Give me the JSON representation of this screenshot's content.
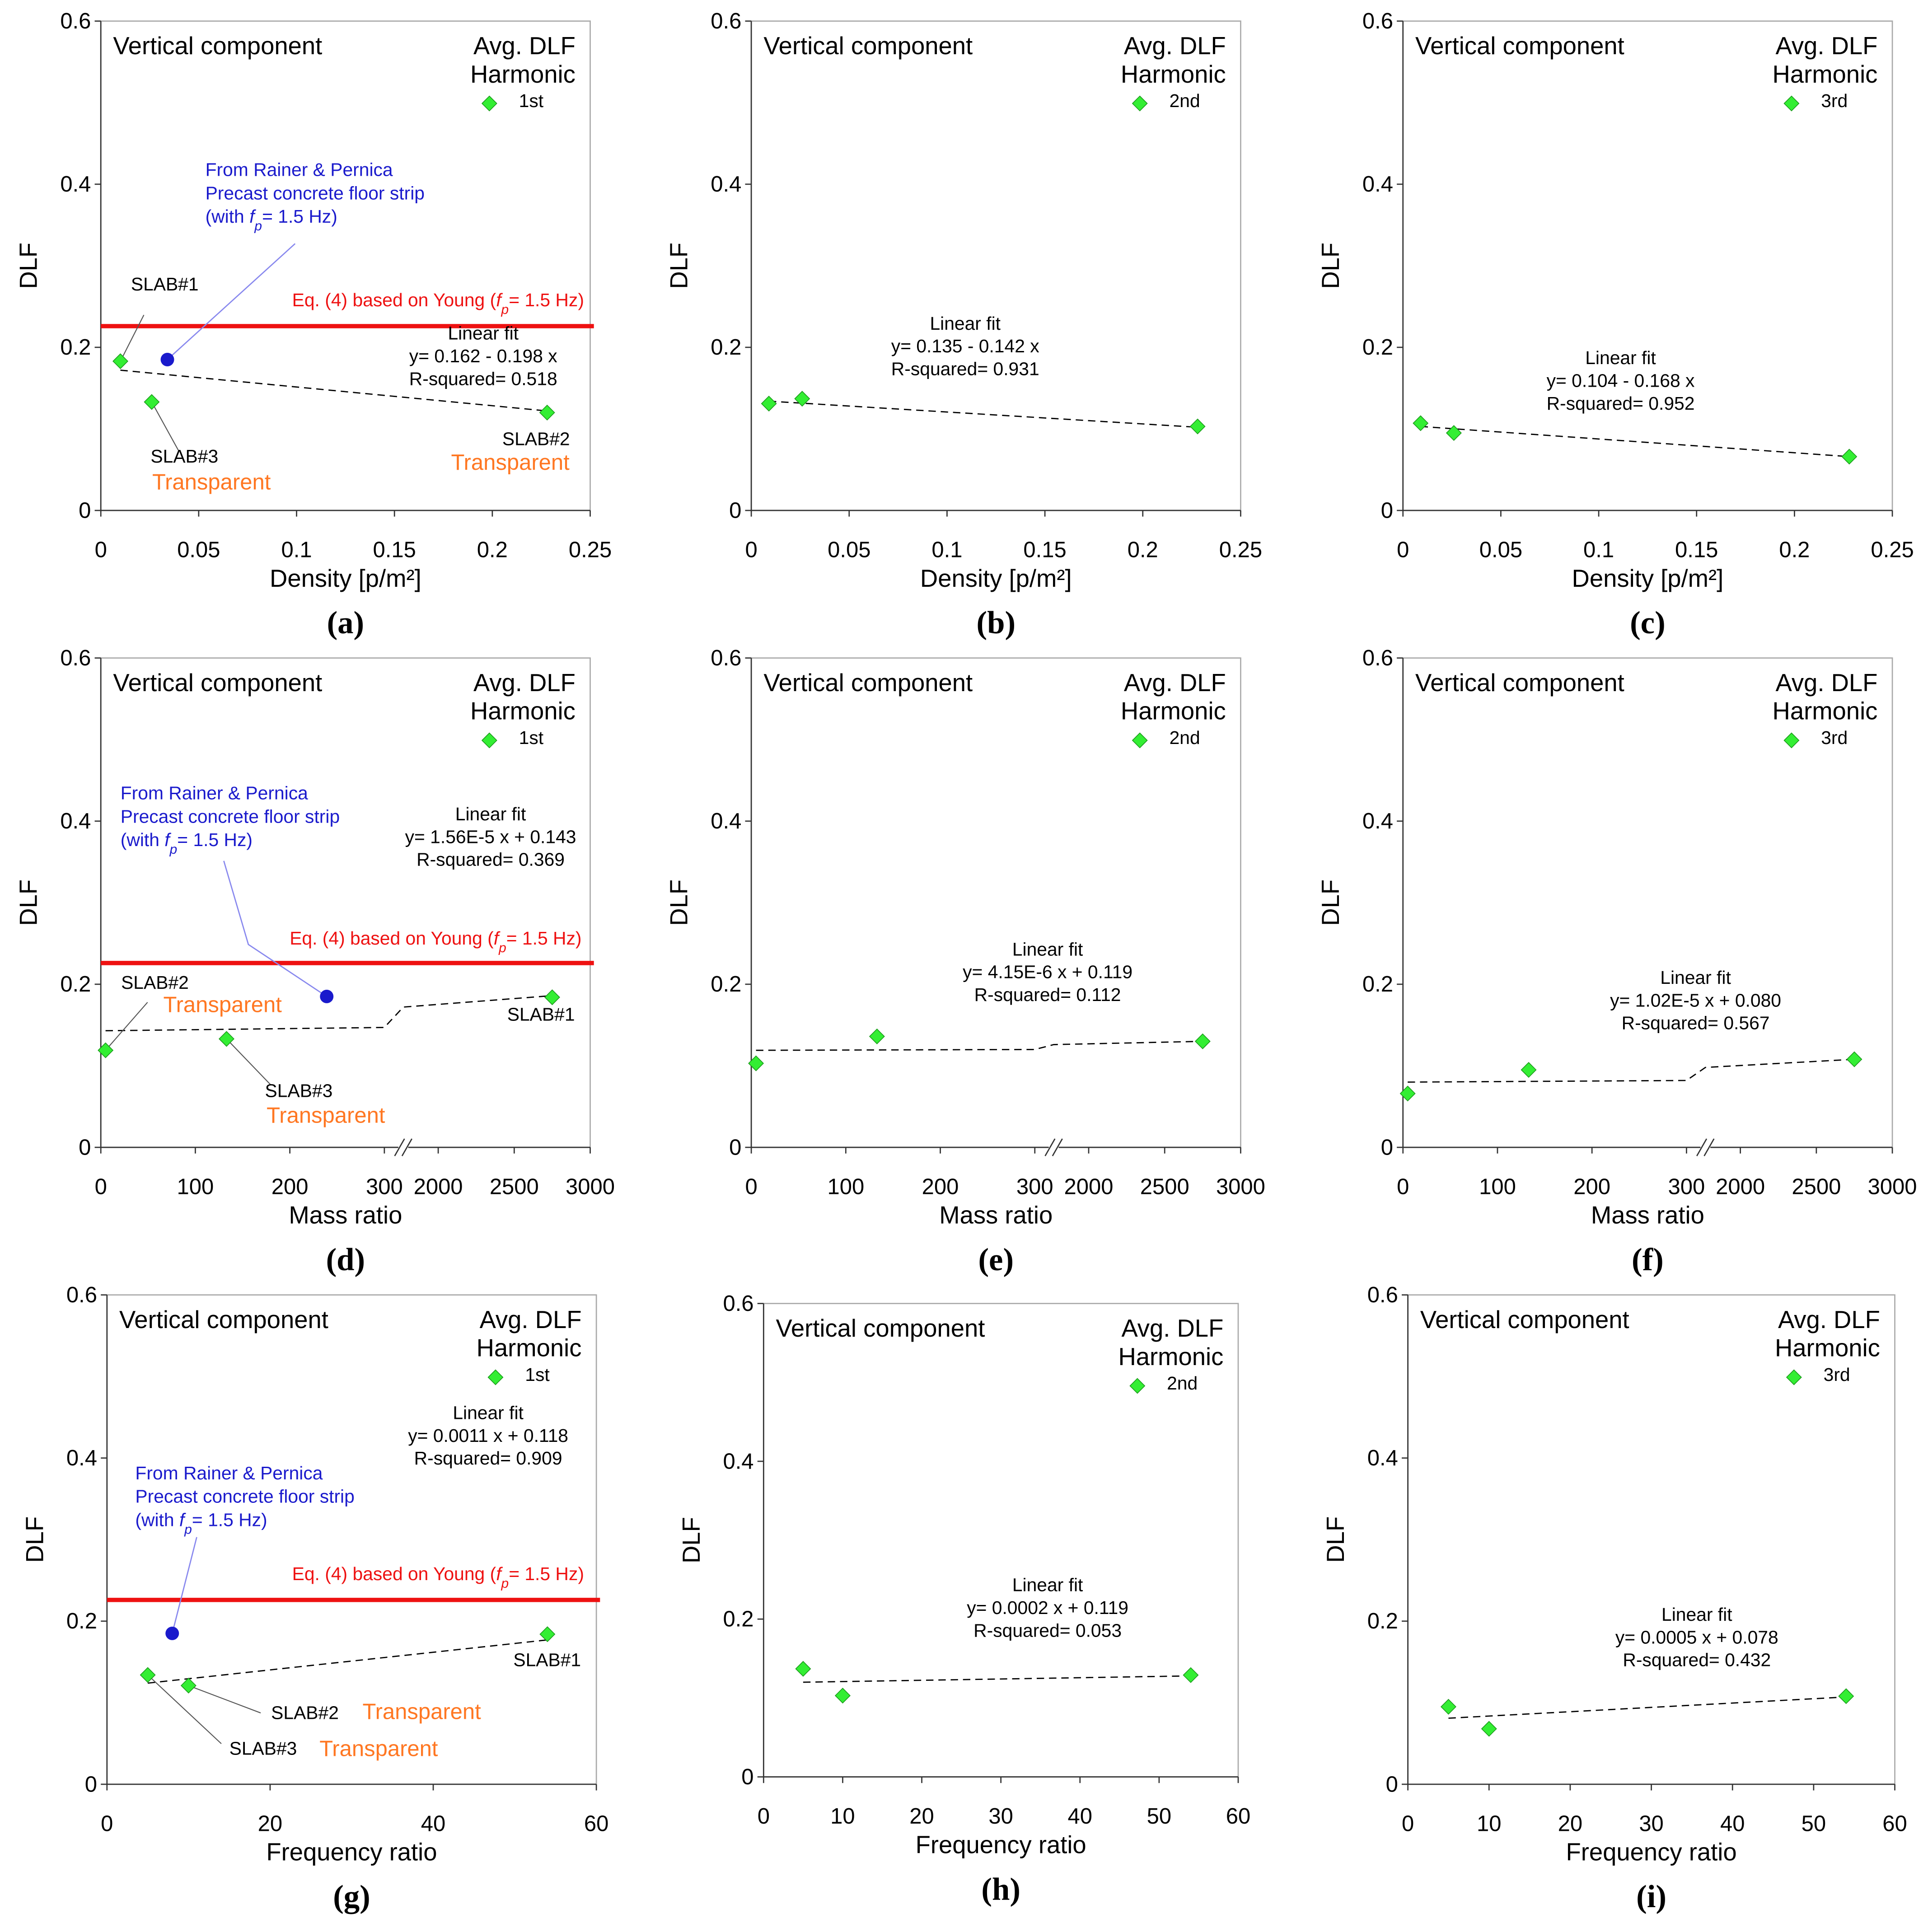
{
  "chart_data": [
    {
      "type": "scatter",
      "panel_label": "(a)",
      "title": "Vertical component",
      "legend_title": [
        "Avg. DLF",
        "Harmonic"
      ],
      "xlabel": "Density  [p/m²]",
      "ylabel": "DLF",
      "xlim": [
        0,
        0.25
      ],
      "xticks": [
        0,
        0.05,
        0.1,
        0.15,
        0.2,
        0.25
      ],
      "ylim": [
        0,
        0.6
      ],
      "yticks": [
        0,
        0.2,
        0.4,
        0.6
      ],
      "series": [
        {
          "name": "1st",
          "color": "#33ee33",
          "x": [
            0.01,
            0.026,
            0.228
          ],
          "values": [
            0.183,
            0.133,
            0.12
          ],
          "point_labels": [
            "SLAB#1",
            "SLAB#3",
            "SLAB#2"
          ],
          "point_notes": [
            null,
            "Transparent",
            "Transparent"
          ]
        }
      ],
      "fit": {
        "label": [
          "Linear fit",
          "y= 0.162 - 0.198 x",
          "R-squared= 0.518"
        ],
        "x": [
          0.01,
          0.228
        ],
        "values": [
          0.172,
          0.122
        ]
      },
      "reference_line": {
        "label": [
          "Eq. (4) based on Young (",
          "f",
          "p",
          "= 1.5 Hz)"
        ],
        "value": 0.226,
        "color": "#ee1111"
      },
      "reference_point": {
        "label": [
          "From Rainer & Pernica",
          "Precast concrete floor strip"
        ],
        "label_last": [
          "(with ",
          "f",
          "p",
          "= 1.5 Hz)"
        ],
        "x": 0.034,
        "value": 0.185,
        "color": "#1a1acc"
      }
    },
    {
      "type": "scatter",
      "panel_label": "(b)",
      "title": "Vertical component",
      "legend_title": [
        "Avg. DLF",
        "Harmonic"
      ],
      "xlabel": "Density  [p/m²]",
      "ylabel": "DLF",
      "xlim": [
        0,
        0.25
      ],
      "xticks": [
        0,
        0.05,
        0.1,
        0.15,
        0.2,
        0.25
      ],
      "ylim": [
        0,
        0.6
      ],
      "yticks": [
        0,
        0.2,
        0.4,
        0.6
      ],
      "series": [
        {
          "name": "2nd",
          "color": "#33ee33",
          "x": [
            0.009,
            0.026,
            0.228
          ],
          "values": [
            0.131,
            0.137,
            0.103
          ]
        }
      ],
      "fit": {
        "label": [
          "Linear fit",
          "y= 0.135 - 0.142 x",
          "R-squared= 0.931"
        ],
        "x": [
          0.009,
          0.228
        ],
        "values": [
          0.134,
          0.102
        ]
      }
    },
    {
      "type": "scatter",
      "panel_label": "(c)",
      "title": "Vertical component",
      "legend_title": [
        "Avg. DLF",
        "Harmonic"
      ],
      "xlabel": "Density  [p/m²]",
      "ylabel": "DLF",
      "xlim": [
        0,
        0.25
      ],
      "xticks": [
        0,
        0.05,
        0.1,
        0.15,
        0.2,
        0.25
      ],
      "ylim": [
        0,
        0.6
      ],
      "yticks": [
        0,
        0.2,
        0.4,
        0.6
      ],
      "series": [
        {
          "name": "3rd",
          "color": "#33ee33",
          "x": [
            0.009,
            0.026,
            0.228
          ],
          "values": [
            0.107,
            0.095,
            0.066
          ]
        }
      ],
      "fit": {
        "label": [
          "Linear fit",
          "y= 0.104 - 0.168 x",
          "R-squared= 0.952"
        ],
        "x": [
          0.009,
          0.228
        ],
        "values": [
          0.103,
          0.066
        ]
      }
    },
    {
      "type": "scatter",
      "panel_label": "(d)",
      "title": "Vertical component",
      "legend_title": [
        "Avg. DLF",
        "Harmonic"
      ],
      "xlabel": "Mass ratio",
      "ylabel": "DLF",
      "xlim": [
        0,
        3000
      ],
      "xbreak": [
        320,
        1770
      ],
      "xticks": [
        0,
        100,
        200,
        300,
        2000,
        2500,
        3000
      ],
      "ylim": [
        0,
        0.6
      ],
      "yticks": [
        0,
        0.2,
        0.4,
        0.6
      ],
      "series": [
        {
          "name": "1st",
          "color": "#33ee33",
          "x": [
            5,
            133,
            2750
          ],
          "values": [
            0.119,
            0.133,
            0.184
          ],
          "point_labels": [
            "SLAB#2",
            "SLAB#3",
            "SLAB#1"
          ],
          "point_notes": [
            "Transparent",
            "Transparent",
            null
          ]
        }
      ],
      "fit": {
        "label": [
          "Linear fit",
          "y= 1.56E-5 x + 0.143",
          "R-squared= 0.369"
        ],
        "x": [
          5,
          300,
          1770,
          2750
        ],
        "values": [
          0.143,
          0.147,
          0.172,
          0.186
        ]
      },
      "reference_line": {
        "label": [
          "Eq. (4) based on Young (",
          "f",
          "p",
          "= 1.5 Hz)"
        ],
        "value": 0.226,
        "color": "#ee1111"
      },
      "reference_point": {
        "label": [
          "From Rainer & Pernica",
          "Precast concrete floor strip"
        ],
        "label_last": [
          "(with ",
          "f",
          "p",
          "= 1.5 Hz)"
        ],
        "x": 239,
        "value": 0.185,
        "color": "#1a1acc"
      }
    },
    {
      "type": "scatter",
      "panel_label": "(e)",
      "title": "Vertical component",
      "legend_title": [
        "Avg. DLF",
        "Harmonic"
      ],
      "xlabel": "Mass ratio",
      "ylabel": "DLF",
      "xlim": [
        0,
        3000
      ],
      "xbreak": [
        320,
        1770
      ],
      "xticks": [
        0,
        100,
        200,
        300,
        2000,
        2500,
        3000
      ],
      "ylim": [
        0,
        0.6
      ],
      "yticks": [
        0,
        0.2,
        0.4,
        0.6
      ],
      "series": [
        {
          "name": "2nd",
          "color": "#33ee33",
          "x": [
            5,
            133,
            2750
          ],
          "values": [
            0.103,
            0.136,
            0.13
          ]
        }
      ],
      "fit": {
        "label": [
          "Linear fit",
          "y= 4.15E-6 x + 0.119",
          "R-squared= 0.112"
        ],
        "x": [
          5,
          300,
          1770,
          2750
        ],
        "values": [
          0.119,
          0.12,
          0.126,
          0.13
        ]
      }
    },
    {
      "type": "scatter",
      "panel_label": "(f)",
      "title": "Vertical component",
      "legend_title": [
        "Avg. DLF",
        "Harmonic"
      ],
      "xlabel": "Mass ratio",
      "ylabel": "DLF",
      "xlim": [
        0,
        3000
      ],
      "xbreak": [
        320,
        1770
      ],
      "xticks": [
        0,
        100,
        200,
        300,
        2000,
        2500,
        3000
      ],
      "ylim": [
        0,
        0.6
      ],
      "yticks": [
        0,
        0.2,
        0.4,
        0.6
      ],
      "series": [
        {
          "name": "3rd",
          "color": "#33ee33",
          "x": [
            5,
            133,
            2750
          ],
          "values": [
            0.066,
            0.095,
            0.108
          ]
        }
      ],
      "fit": {
        "label": [
          "Linear fit",
          "y= 1.02E-5 x + 0.080",
          "R-squared= 0.567"
        ],
        "x": [
          5,
          300,
          1770,
          2750
        ],
        "values": [
          0.08,
          0.082,
          0.098,
          0.108
        ]
      }
    },
    {
      "type": "scatter",
      "panel_label": "(g)",
      "title": "Vertical component",
      "legend_title": [
        "Avg. DLF",
        "Harmonic"
      ],
      "xlabel": "Frequency ratio",
      "ylabel": "DLF",
      "xlim": [
        0,
        60
      ],
      "xticks": [
        0,
        20,
        40,
        60
      ],
      "ylim": [
        0,
        0.6
      ],
      "yticks": [
        0,
        0.2,
        0.4,
        0.6
      ],
      "series": [
        {
          "name": "1st",
          "color": "#33ee33",
          "x": [
            5,
            10,
            54
          ],
          "values": [
            0.134,
            0.121,
            0.184
          ],
          "point_labels": [
            "SLAB#3",
            "SLAB#2",
            "SLAB#1"
          ],
          "point_notes": [
            "Transparent",
            "Transparent",
            null
          ]
        }
      ],
      "fit": {
        "label": [
          "Linear fit",
          "y= 0.0011 x + 0.118",
          "R-squared= 0.909"
        ],
        "x": [
          5,
          54
        ],
        "values": [
          0.124,
          0.177
        ]
      },
      "reference_line": {
        "label": [
          "Eq. (4) based on Young (",
          "f",
          "p",
          "= 1.5 Hz)"
        ],
        "value": 0.226,
        "color": "#ee1111"
      },
      "reference_point": {
        "label": [
          "From Rainer & Pernica",
          "Precast concrete floor strip"
        ],
        "label_last": [
          "(with ",
          "f",
          "p",
          "= 1.5 Hz)"
        ],
        "x": 8,
        "value": 0.185,
        "color": "#1a1acc"
      }
    },
    {
      "type": "scatter",
      "panel_label": "(h)",
      "title": "Vertical component",
      "legend_title": [
        "Avg. DLF",
        "Harmonic"
      ],
      "xlabel": "Frequency ratio",
      "ylabel": "DLF",
      "xlim": [
        0,
        60
      ],
      "xticks": [
        0,
        10,
        20,
        30,
        40,
        50,
        60
      ],
      "ylim": [
        0,
        0.6
      ],
      "yticks": [
        0,
        0.2,
        0.4,
        0.6
      ],
      "series": [
        {
          "name": "2nd",
          "color": "#33ee33",
          "x": [
            5,
            10,
            54
          ],
          "values": [
            0.137,
            0.103,
            0.129
          ]
        }
      ],
      "fit": {
        "label": [
          "Linear fit",
          "y= 0.0002 x + 0.119",
          "R-squared= 0.053"
        ],
        "x": [
          5,
          54
        ],
        "values": [
          0.12,
          0.128
        ]
      }
    },
    {
      "type": "scatter",
      "panel_label": "(i)",
      "title": "Vertical component",
      "legend_title": [
        "Avg. DLF",
        "Harmonic"
      ],
      "xlabel": "Frequency ratio",
      "ylabel": "DLF",
      "xlim": [
        0,
        60
      ],
      "xticks": [
        0,
        10,
        20,
        30,
        40,
        50,
        60
      ],
      "ylim": [
        0,
        0.6
      ],
      "yticks": [
        0,
        0.2,
        0.4,
        0.6
      ],
      "series": [
        {
          "name": "3rd",
          "color": "#33ee33",
          "x": [
            5,
            10,
            54
          ],
          "values": [
            0.095,
            0.068,
            0.108
          ]
        }
      ],
      "fit": {
        "label": [
          "Linear fit",
          "y= 0.0005 x + 0.078",
          "R-squared= 0.432"
        ],
        "x": [
          5,
          54
        ],
        "values": [
          0.081,
          0.107
        ]
      }
    }
  ]
}
